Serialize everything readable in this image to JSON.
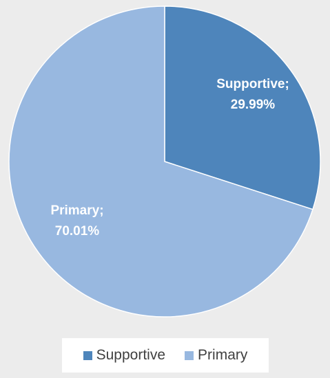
{
  "chart_data": {
    "type": "pie",
    "title": "",
    "slices": [
      {
        "name": "Supportive",
        "value": 29.99,
        "color": "#4e85bb",
        "label_name": "Supportive;",
        "label_value": "29.99%"
      },
      {
        "name": "Primary",
        "value": 70.01,
        "color": "#98b8e0",
        "label_name": "Primary;",
        "label_value": "70.01%"
      }
    ],
    "start_angle_deg": 0,
    "direction": "clockwise",
    "legend": {
      "placement": "bottom",
      "entries": [
        {
          "name": "Supportive",
          "color": "#4e85bb"
        },
        {
          "name": "Primary",
          "color": "#98b8e0"
        }
      ]
    }
  }
}
